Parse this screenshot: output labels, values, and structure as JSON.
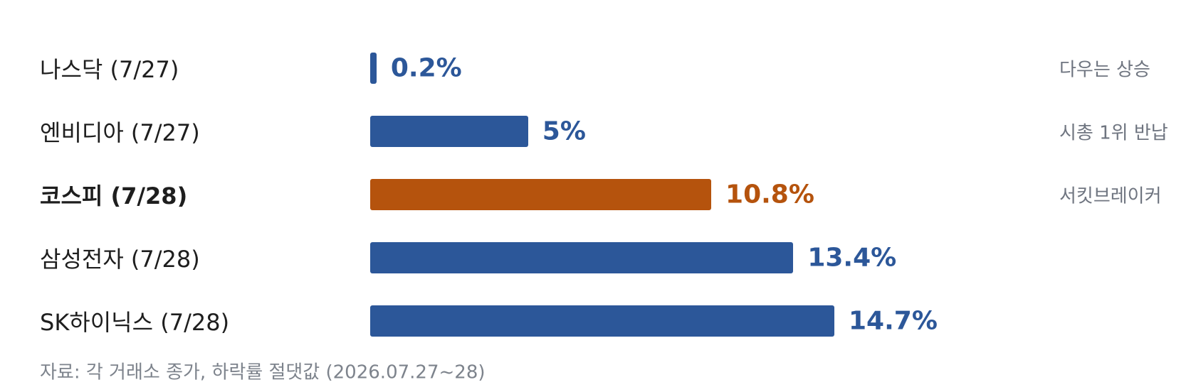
{
  "colors": {
    "default_bar": "#2c5799",
    "highlight_bar": "#b5530d",
    "label_text": "#1e1e1e",
    "note_text": "#6f7580",
    "source_text": "#7d838c"
  },
  "chart_data": {
    "type": "bar",
    "orientation": "horizontal",
    "categories": [
      "나스닥 (7/27)",
      "엔비디아 (7/27)",
      "코스피 (7/28)",
      "삼성전자 (7/28)",
      "SK하이닉스 (7/28)"
    ],
    "values": [
      0.2,
      5,
      10.8,
      13.4,
      14.7
    ],
    "value_labels": [
      "0.2%",
      "5%",
      "10.8%",
      "13.4%",
      "14.7%"
    ],
    "notes": [
      "다우는 상승",
      "시총 1위 반납",
      "서킷브레이커",
      "",
      ""
    ],
    "highlight_index": 2,
    "unit": "%",
    "xlim": [
      0,
      14.7
    ],
    "grid": false,
    "legend": "none",
    "source": "자료: 각 거래소 종가, 하락률 절댓값 (2026.07.27~28)"
  }
}
